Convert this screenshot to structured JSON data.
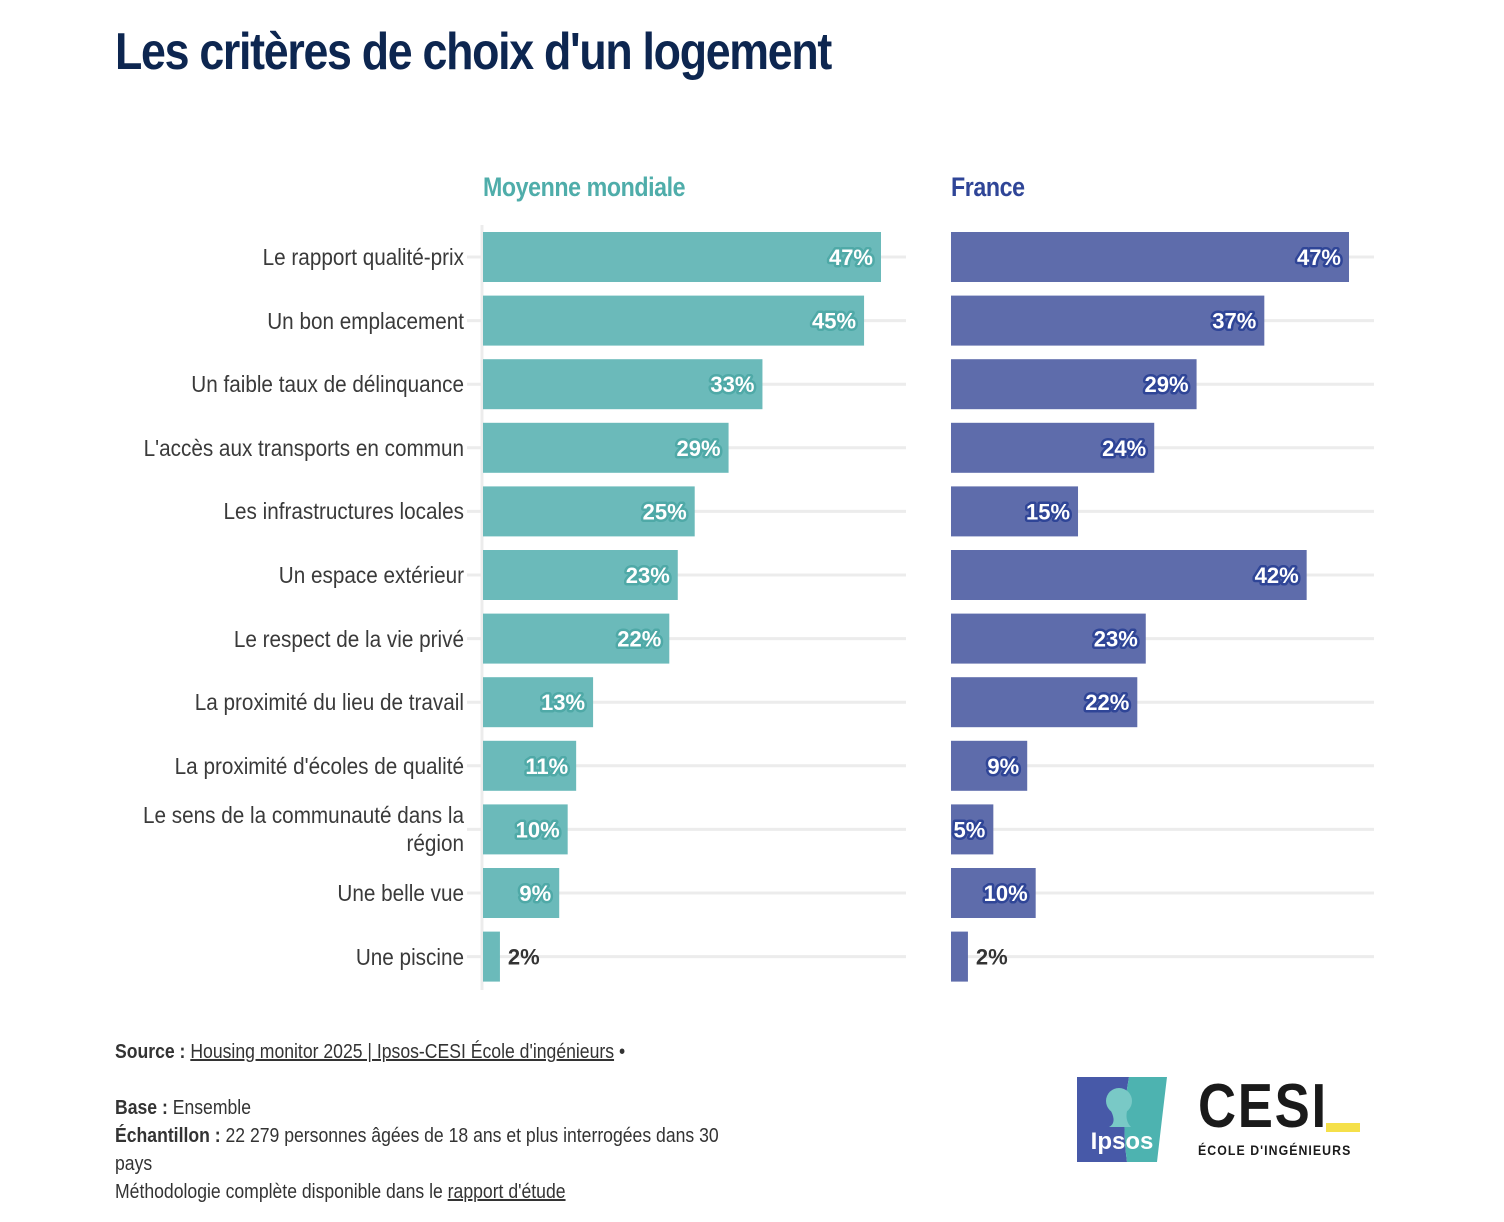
{
  "title": "Les critères de choix d'un logement",
  "colors": {
    "title": "#0d2650",
    "world": "#66b8b8",
    "world_title": "#4fadaa",
    "world_label_halo": "#4fa9a7",
    "france": "#5967a8",
    "france_title": "#2f4597",
    "france_label_halo": "#2f4597",
    "gridline": "#ececec",
    "outside_label": "#333333"
  },
  "chart_data": {
    "type": "bar",
    "orientation": "horizontal",
    "title": "Les critères de choix d'un logement",
    "xlabel": "",
    "ylabel": "",
    "xlim": [
      0,
      50
    ],
    "grid": true,
    "value_suffix": "%",
    "categories": [
      "Le rapport qualité-prix",
      "Un bon emplacement",
      "Un faible taux de délinquance",
      "L'accès aux transports en commun",
      "Les infrastructures locales",
      "Un espace extérieur",
      "Le respect de la vie privé",
      "La proximité du lieu de travail",
      "La proximité d'écoles de qualité",
      "Le sens de la communauté dans la région",
      "Une belle vue",
      "Une piscine"
    ],
    "series": [
      {
        "name": "Moyenne mondiale",
        "values": [
          47,
          45,
          33,
          29,
          25,
          23,
          22,
          13,
          11,
          10,
          9,
          2
        ]
      },
      {
        "name": "France",
        "values": [
          47,
          37,
          29,
          24,
          15,
          42,
          23,
          22,
          9,
          5,
          10,
          2
        ]
      }
    ]
  },
  "category_display": [
    [
      "Le rapport qualité-prix"
    ],
    [
      "Un bon emplacement"
    ],
    [
      "Un faible taux de délinquance"
    ],
    [
      "L'accès aux transports en commun"
    ],
    [
      "Les infrastructures locales"
    ],
    [
      "Un espace extérieur"
    ],
    [
      "Le respect de la vie privé"
    ],
    [
      "La proximité du lieu de travail"
    ],
    [
      "La proximité d'écoles de qualité"
    ],
    [
      "Le sens de la communauté dans la",
      "région"
    ],
    [
      "Une belle vue"
    ],
    [
      "Une piscine"
    ]
  ],
  "footer": {
    "source_label": "Source :",
    "source_link": "Housing monitor 2025 | Ipsos-CESI École d'ingénieurs",
    "source_bullet": "•",
    "base_label": "Base :",
    "base_value": "Ensemble",
    "sample_label": "Échantillon :",
    "sample_value_line1": "22 279 personnes âgées de 18 ans et plus interrogées dans 30",
    "sample_value_line2": "pays",
    "methodology_text": "Méthodologie complète disponible dans le",
    "methodology_link": "rapport d'étude"
  },
  "logos": {
    "ipsos": "Ipsos",
    "cesi": "CESI",
    "cesi_subtitle": "ÉCOLE D'INGÉNIEURS"
  }
}
